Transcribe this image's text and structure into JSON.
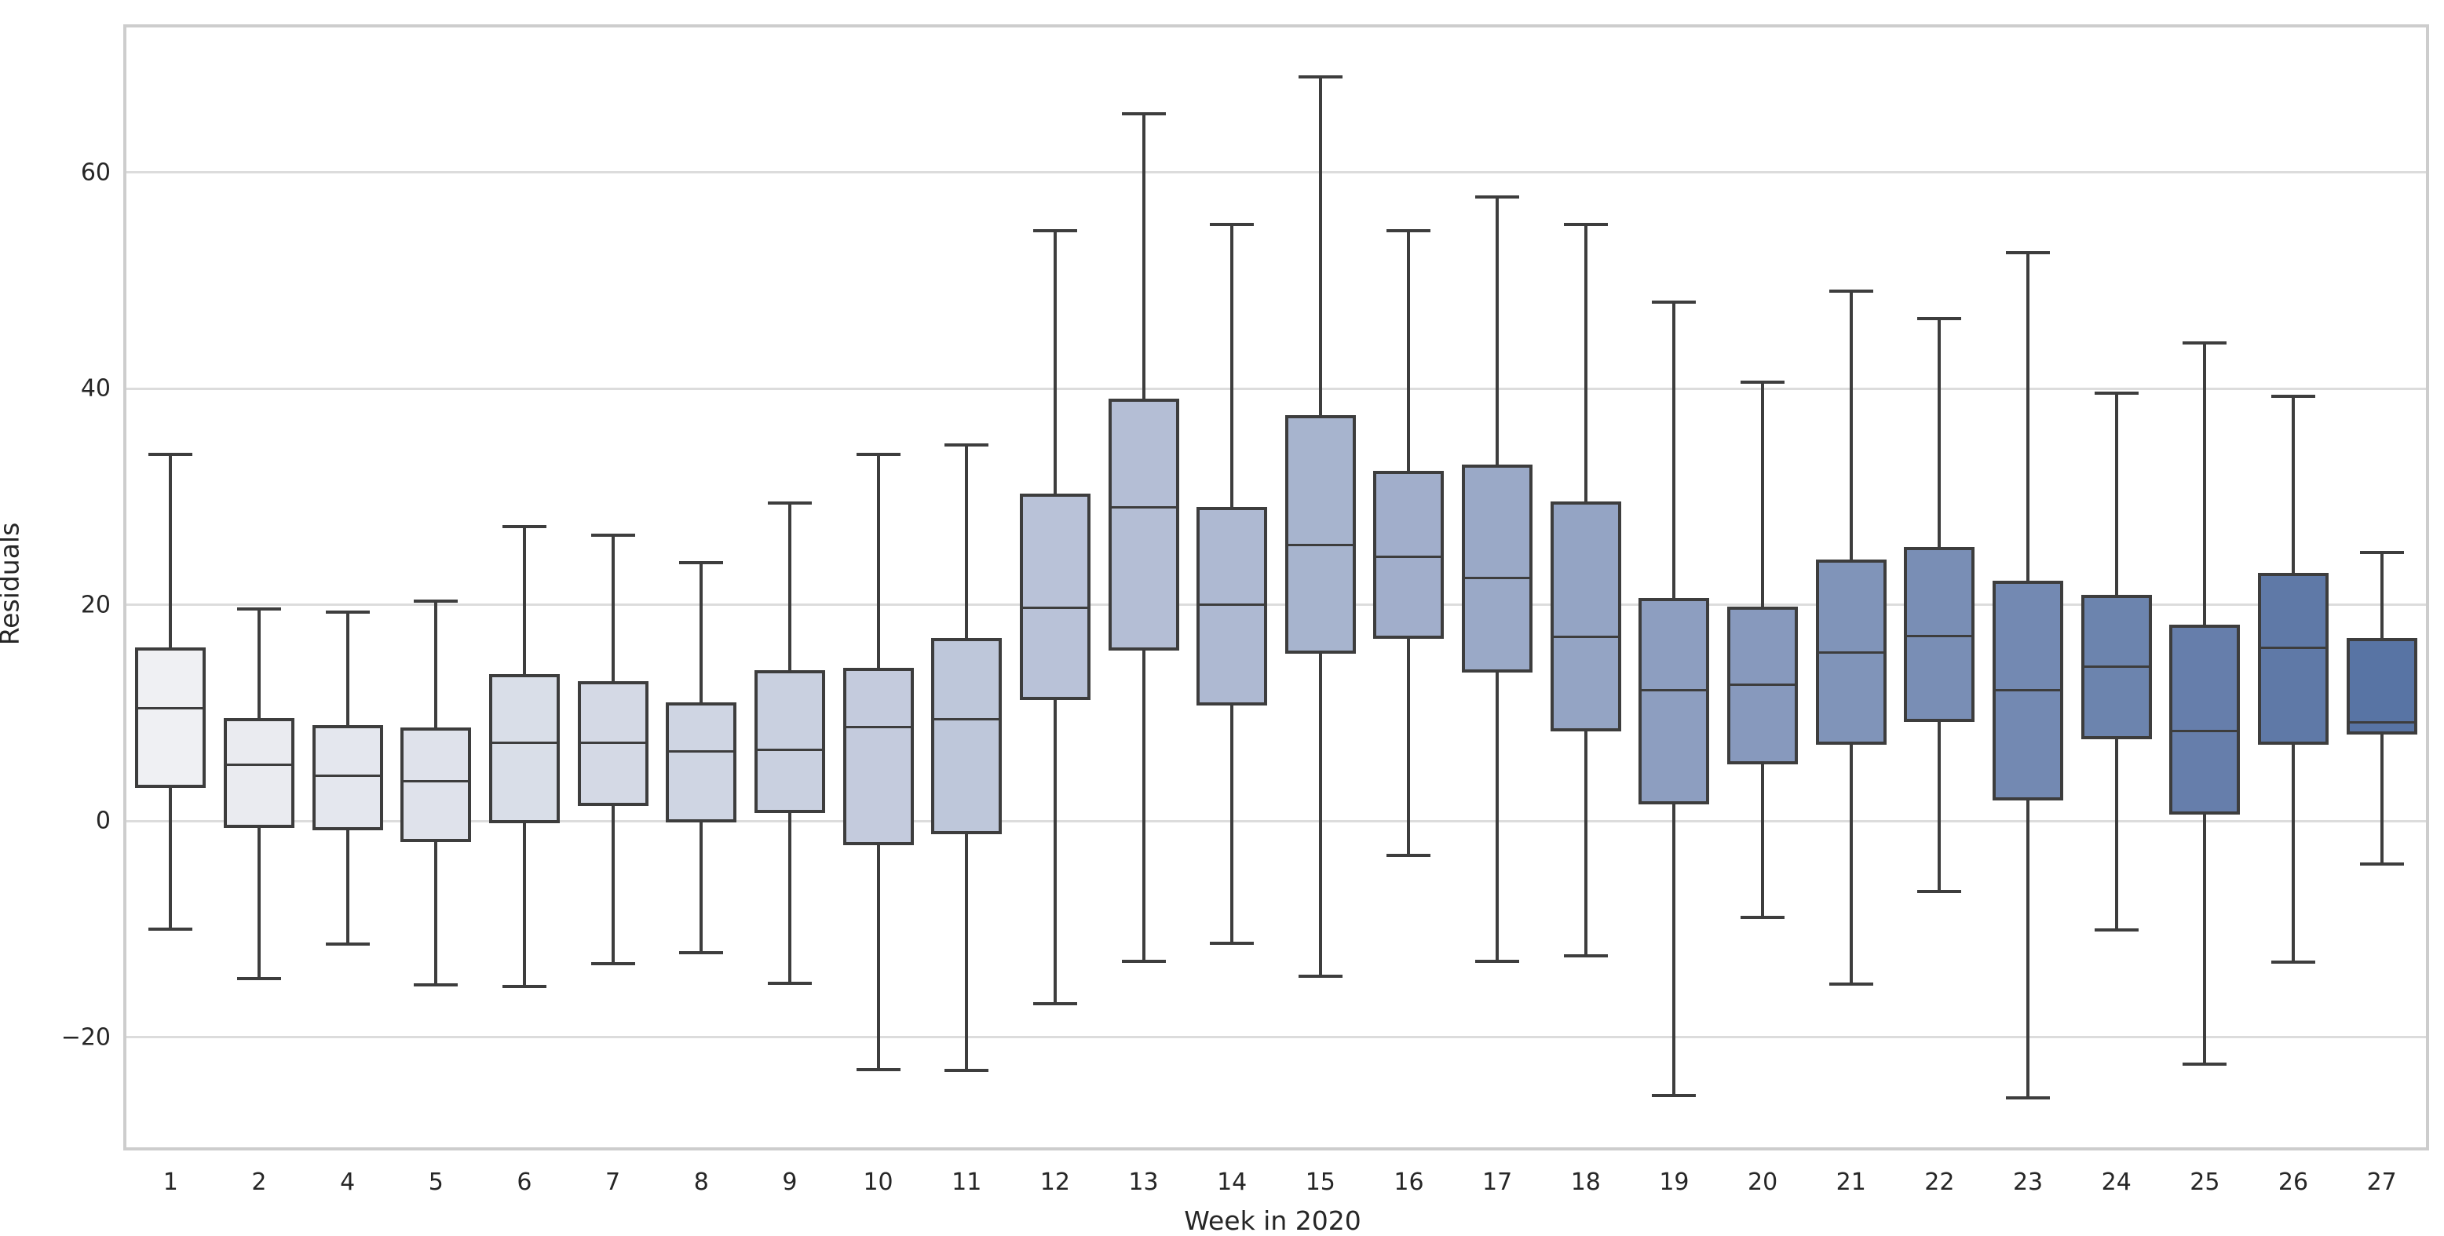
{
  "chart_data": {
    "type": "boxplot",
    "xlabel": "Week in 2020",
    "ylabel": "Residuals",
    "categories": [
      "1",
      "2",
      "4",
      "5",
      "6",
      "7",
      "8",
      "9",
      "10",
      "11",
      "12",
      "13",
      "14",
      "15",
      "16",
      "17",
      "18",
      "19",
      "20",
      "21",
      "22",
      "23",
      "24",
      "25",
      "26",
      "27"
    ],
    "ylim": [
      -30.2,
      73.4
    ],
    "grid": "horizontal-only",
    "legend": "none",
    "yticks": [
      {
        "v": -20,
        "label": "−20"
      },
      {
        "v": 0,
        "label": "0"
      },
      {
        "v": 20,
        "label": "20"
      },
      {
        "v": 40,
        "label": "40"
      },
      {
        "v": 60,
        "label": "60"
      }
    ],
    "boxes": [
      {
        "week": "1",
        "whislo": -10.0,
        "q1": 3.2,
        "med": 10.4,
        "q3": 15.9,
        "whishi": 33.9,
        "color": "#eff0f3"
      },
      {
        "week": "2",
        "whislo": -14.6,
        "q1": -0.5,
        "med": 5.2,
        "q3": 9.4,
        "whishi": 19.6,
        "color": "#eaebf0"
      },
      {
        "week": "4",
        "whislo": -11.4,
        "q1": -0.7,
        "med": 4.2,
        "q3": 8.7,
        "whishi": 19.3,
        "color": "#e4e7ee"
      },
      {
        "week": "5",
        "whislo": -15.2,
        "q1": -1.8,
        "med": 3.7,
        "q3": 8.5,
        "whishi": 20.3,
        "color": "#dfe2eb"
      },
      {
        "week": "6",
        "whislo": -15.3,
        "q1": -0.1,
        "med": 7.2,
        "q3": 13.4,
        "whishi": 27.2,
        "color": "#d9dee8"
      },
      {
        "week": "7",
        "whislo": -13.2,
        "q1": 1.5,
        "med": 7.2,
        "q3": 12.8,
        "whishi": 26.4,
        "color": "#d4d9e5"
      },
      {
        "week": "8",
        "whislo": -12.2,
        "q1": 0.0,
        "med": 6.4,
        "q3": 10.8,
        "whishi": 23.9,
        "color": "#cfd5e3"
      },
      {
        "week": "9",
        "whislo": -15.0,
        "q1": 0.9,
        "med": 6.6,
        "q3": 13.8,
        "whishi": 29.4,
        "color": "#c9d0e0"
      },
      {
        "week": "10",
        "whislo": -23.0,
        "q1": -2.1,
        "med": 8.7,
        "q3": 14.0,
        "whishi": 33.9,
        "color": "#c4cbdd"
      },
      {
        "week": "11",
        "whislo": -23.1,
        "q1": -1.1,
        "med": 9.4,
        "q3": 16.8,
        "whishi": 34.8,
        "color": "#bec7da"
      },
      {
        "week": "12",
        "whislo": -16.9,
        "q1": 11.3,
        "med": 19.7,
        "q3": 30.1,
        "whishi": 54.6,
        "color": "#b9c2d8"
      },
      {
        "week": "13",
        "whislo": -13.0,
        "q1": 15.9,
        "med": 29.0,
        "q3": 38.9,
        "whishi": 65.4,
        "color": "#b4bed5"
      },
      {
        "week": "14",
        "whislo": -11.3,
        "q1": 10.8,
        "med": 20.0,
        "q3": 28.9,
        "whishi": 55.2,
        "color": "#aeb9d2"
      },
      {
        "week": "15",
        "whislo": -14.4,
        "q1": 15.6,
        "med": 25.5,
        "q3": 37.4,
        "whishi": 68.8,
        "color": "#a7b4ce"
      },
      {
        "week": "16",
        "whislo": -3.2,
        "q1": 17.0,
        "med": 24.4,
        "q3": 32.2,
        "whishi": 54.6,
        "color": "#a1aecb"
      },
      {
        "week": "17",
        "whislo": -13.0,
        "q1": 13.9,
        "med": 22.5,
        "q3": 32.8,
        "whishi": 57.7,
        "color": "#9aa9c7"
      },
      {
        "week": "18",
        "whislo": -12.5,
        "q1": 8.4,
        "med": 17.0,
        "q3": 29.4,
        "whishi": 55.2,
        "color": "#94a4c4"
      },
      {
        "week": "19",
        "whislo": -25.4,
        "q1": 1.7,
        "med": 12.1,
        "q3": 20.5,
        "whishi": 48.0,
        "color": "#8d9ec0"
      },
      {
        "week": "20",
        "whislo": -8.9,
        "q1": 5.4,
        "med": 12.6,
        "q3": 19.7,
        "whishi": 40.6,
        "color": "#8799bd"
      },
      {
        "week": "21",
        "whislo": -15.1,
        "q1": 7.2,
        "med": 15.6,
        "q3": 24.0,
        "whishi": 49.0,
        "color": "#8094b9"
      },
      {
        "week": "22",
        "whislo": -6.5,
        "q1": 9.3,
        "med": 17.1,
        "q3": 25.2,
        "whishi": 46.5,
        "color": "#798eb5"
      },
      {
        "week": "23",
        "whislo": -25.6,
        "q1": 2.0,
        "med": 12.1,
        "q3": 22.1,
        "whishi": 52.6,
        "color": "#7389b2"
      },
      {
        "week": "24",
        "whislo": -10.1,
        "q1": 7.7,
        "med": 14.3,
        "q3": 20.8,
        "whishi": 39.6,
        "color": "#6c84ae"
      },
      {
        "week": "25",
        "whislo": -22.5,
        "q1": 0.7,
        "med": 8.3,
        "q3": 18.0,
        "whishi": 44.2,
        "color": "#667eab"
      },
      {
        "week": "26",
        "whislo": -13.1,
        "q1": 7.2,
        "med": 16.0,
        "q3": 22.8,
        "whishi": 39.3,
        "color": "#5f79a7"
      },
      {
        "week": "27",
        "whislo": -4.0,
        "q1": 8.1,
        "med": 9.1,
        "q3": 16.8,
        "whishi": 24.8,
        "color": "#5874a4"
      }
    ]
  },
  "style": {
    "edge_color": "#3d3d3d",
    "grid_color": "#dcdcdc",
    "spine_color": "#cdcdcd",
    "text_color": "#262626",
    "background": "#ffffff"
  }
}
